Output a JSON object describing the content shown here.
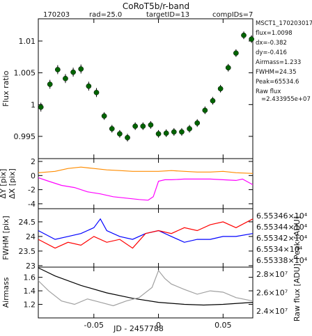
{
  "chart_data": {
    "title": "CoRoT5b/r-band",
    "header": {
      "date": "170203",
      "rad": "rad=25.0",
      "target": "targetID=13",
      "comp": "compIDs=7"
    },
    "info": {
      "id": "MSCT1_1702030177",
      "flux": "flux=1.0098",
      "dx": "dx=-0.382",
      "dy": "dy=-0.416",
      "airmass": "Airmass=1.233",
      "fwhm": "FWHM=24.35",
      "peak": "Peak=65534.6",
      "raw_flux_label": "Raw flux",
      "raw_flux_value": "=2.433955e+07"
    },
    "xlabel": "JD - 2457788",
    "xlim": [
      -0.093,
      0.073
    ],
    "xticks": [
      -0.05,
      0,
      0.05
    ],
    "xtick_labels": [
      "-0.05",
      "0",
      "0.05"
    ],
    "panels": [
      {
        "name": "flux",
        "type": "scatter",
        "ylabel": "Flux ratio",
        "ylim": [
          0.9915,
          1.0135
        ],
        "yticks": [
          0.995,
          1.0,
          1.005,
          1.01
        ],
        "ytick_labels": [
          "0.995",
          "1",
          "1.005",
          "1.01"
        ],
        "binned": {
          "x": [
            -0.091,
            -0.084,
            -0.078,
            -0.072,
            -0.066,
            -0.06,
            -0.054,
            -0.048,
            -0.042,
            -0.036,
            -0.03,
            -0.024,
            -0.018,
            -0.012,
            -0.006,
            0.0,
            0.006,
            0.012,
            0.018,
            0.024,
            0.03,
            0.036,
            0.042,
            0.048,
            0.054,
            0.06,
            0.066,
            0.072
          ],
          "y": [
            0.9996,
            1.0032,
            1.0055,
            1.0041,
            1.0051,
            1.0056,
            1.0029,
            1.0019,
            0.9982,
            0.9962,
            0.9954,
            0.9948,
            0.9966,
            0.9966,
            0.9968,
            0.9954,
            0.9955,
            0.9957,
            0.9957,
            0.9962,
            0.9971,
            0.9991,
            1.0006,
            1.0025,
            1.0058,
            1.0081,
            1.0109,
            1.0103
          ],
          "err": [
            0.0007,
            0.0007,
            0.0007,
            0.0007,
            0.0007,
            0.0007,
            0.0007,
            0.0007,
            0.0006,
            0.0006,
            0.0006,
            0.0006,
            0.0006,
            0.0006,
            0.0006,
            0.0006,
            0.0006,
            0.0006,
            0.0006,
            0.0006,
            0.0006,
            0.0006,
            0.0006,
            0.0006,
            0.0006,
            0.0006,
            0.0006,
            0.0006
          ]
        }
      },
      {
        "name": "shifts",
        "type": "line",
        "ylabels": [
          {
            "text": "ΔY [pix]",
            "color": "#ff8c00"
          },
          {
            "text": "ΔX [pix]",
            "color": "#ff00ff"
          }
        ],
        "ylim": [
          -4.7,
          2.4
        ],
        "yticks": [
          -4,
          -2,
          0,
          2
        ],
        "ytick_labels": [
          "-4",
          "-2",
          "0",
          "2"
        ],
        "series": [
          {
            "color": "#ff8c00",
            "x": [
              -0.093,
              -0.08,
              -0.07,
              -0.06,
              -0.05,
              -0.04,
              -0.03,
              -0.02,
              -0.01,
              0.0,
              0.01,
              0.02,
              0.03,
              0.04,
              0.05,
              0.06,
              0.073
            ],
            "y": [
              0.4,
              0.6,
              1.0,
              1.2,
              1.0,
              0.8,
              0.7,
              0.6,
              0.6,
              0.6,
              0.7,
              0.6,
              0.5,
              0.5,
              0.6,
              0.4,
              0.3
            ]
          },
          {
            "color": "#ff00ff",
            "x": [
              -0.093,
              -0.085,
              -0.075,
              -0.065,
              -0.055,
              -0.045,
              -0.035,
              -0.025,
              -0.015,
              -0.008,
              -0.004,
              0.0,
              0.005,
              0.01,
              0.02,
              0.03,
              0.04,
              0.05,
              0.06,
              0.065,
              0.073
            ],
            "y": [
              -0.3,
              -0.8,
              -1.4,
              -1.7,
              -2.3,
              -2.6,
              -3.0,
              -3.2,
              -3.4,
              -3.5,
              -3.0,
              -0.8,
              -0.6,
              -0.6,
              -0.5,
              -0.5,
              -0.5,
              -0.6,
              -0.7,
              -0.5,
              -1.3
            ]
          }
        ]
      },
      {
        "name": "fwhm",
        "type": "line",
        "ylabel": "FWHM [pix]",
        "ylabel_color": "#0000ff",
        "ylim": [
          22.95,
          24.95
        ],
        "yticks": [
          23,
          23.5,
          24,
          24.5
        ],
        "ytick_labels": [
          "23",
          "23.5",
          "24",
          "24.5"
        ],
        "right_ylabel": "Peak [ADU]",
        "right_ylabel_color": "#ff0000",
        "right_ytick_labels": [
          "6.55346×10⁴",
          "6.55344×10⁴",
          "6.55342×10⁴",
          "6.5534×10⁴",
          "6.55338×10⁴"
        ],
        "series": [
          {
            "name": "FWHM",
            "color": "#0000ff",
            "x": [
              -0.093,
              -0.08,
              -0.07,
              -0.06,
              -0.05,
              -0.045,
              -0.04,
              -0.03,
              -0.02,
              -0.01,
              0.0,
              0.01,
              0.02,
              0.03,
              0.04,
              0.05,
              0.06,
              0.073
            ],
            "y": [
              24.2,
              23.9,
              24.0,
              24.1,
              24.3,
              24.6,
              24.2,
              24.0,
              23.9,
              24.1,
              24.2,
              24.0,
              23.8,
              23.9,
              23.9,
              24.0,
              24.0,
              24.1
            ]
          },
          {
            "name": "Peak",
            "color": "#ff0000",
            "x": [
              -0.093,
              -0.08,
              -0.07,
              -0.06,
              -0.05,
              -0.04,
              -0.03,
              -0.02,
              -0.01,
              0.0,
              0.01,
              0.02,
              0.03,
              0.04,
              0.05,
              0.06,
              0.073
            ],
            "y": [
              23.9,
              23.6,
              23.8,
              23.7,
              24.0,
              23.8,
              23.9,
              23.6,
              24.1,
              24.2,
              24.1,
              24.3,
              24.2,
              24.4,
              24.5,
              24.3,
              24.6
            ]
          }
        ]
      },
      {
        "name": "airmass",
        "type": "line",
        "ylabel": "Airmass",
        "ylim": [
          1.0,
          1.75
        ],
        "yticks": [
          1.2,
          1.4,
          1.6
        ],
        "ytick_labels": [
          "1.2",
          "1.4",
          "1.6"
        ],
        "right_ylabel": "Raw flux [ADU]",
        "right_ylabel_color": "#a0a0a0",
        "right_ytick_labels": [
          "2.8×10⁷",
          "2.6×10⁷",
          "2.4×10⁷"
        ],
        "series": [
          {
            "name": "Airmass",
            "color": "#000000",
            "x": [
              -0.093,
              -0.08,
              -0.06,
              -0.04,
              -0.02,
              0.0,
              0.02,
              0.035,
              0.05,
              0.073
            ],
            "y": [
              1.74,
              1.62,
              1.48,
              1.37,
              1.29,
              1.23,
              1.2,
              1.19,
              1.2,
              1.23
            ]
          },
          {
            "name": "Raw flux",
            "color": "#a0a0a0",
            "x": [
              -0.093,
              -0.085,
              -0.075,
              -0.065,
              -0.055,
              -0.045,
              -0.035,
              -0.025,
              -0.015,
              -0.005,
              0.0,
              0.005,
              0.01,
              0.02,
              0.03,
              0.04,
              0.05,
              0.06,
              0.073
            ],
            "y": [
              1.55,
              1.4,
              1.25,
              1.2,
              1.28,
              1.23,
              1.18,
              1.25,
              1.3,
              1.45,
              1.7,
              1.58,
              1.5,
              1.42,
              1.35,
              1.4,
              1.38,
              1.3,
              1.25
            ]
          }
        ]
      }
    ]
  }
}
